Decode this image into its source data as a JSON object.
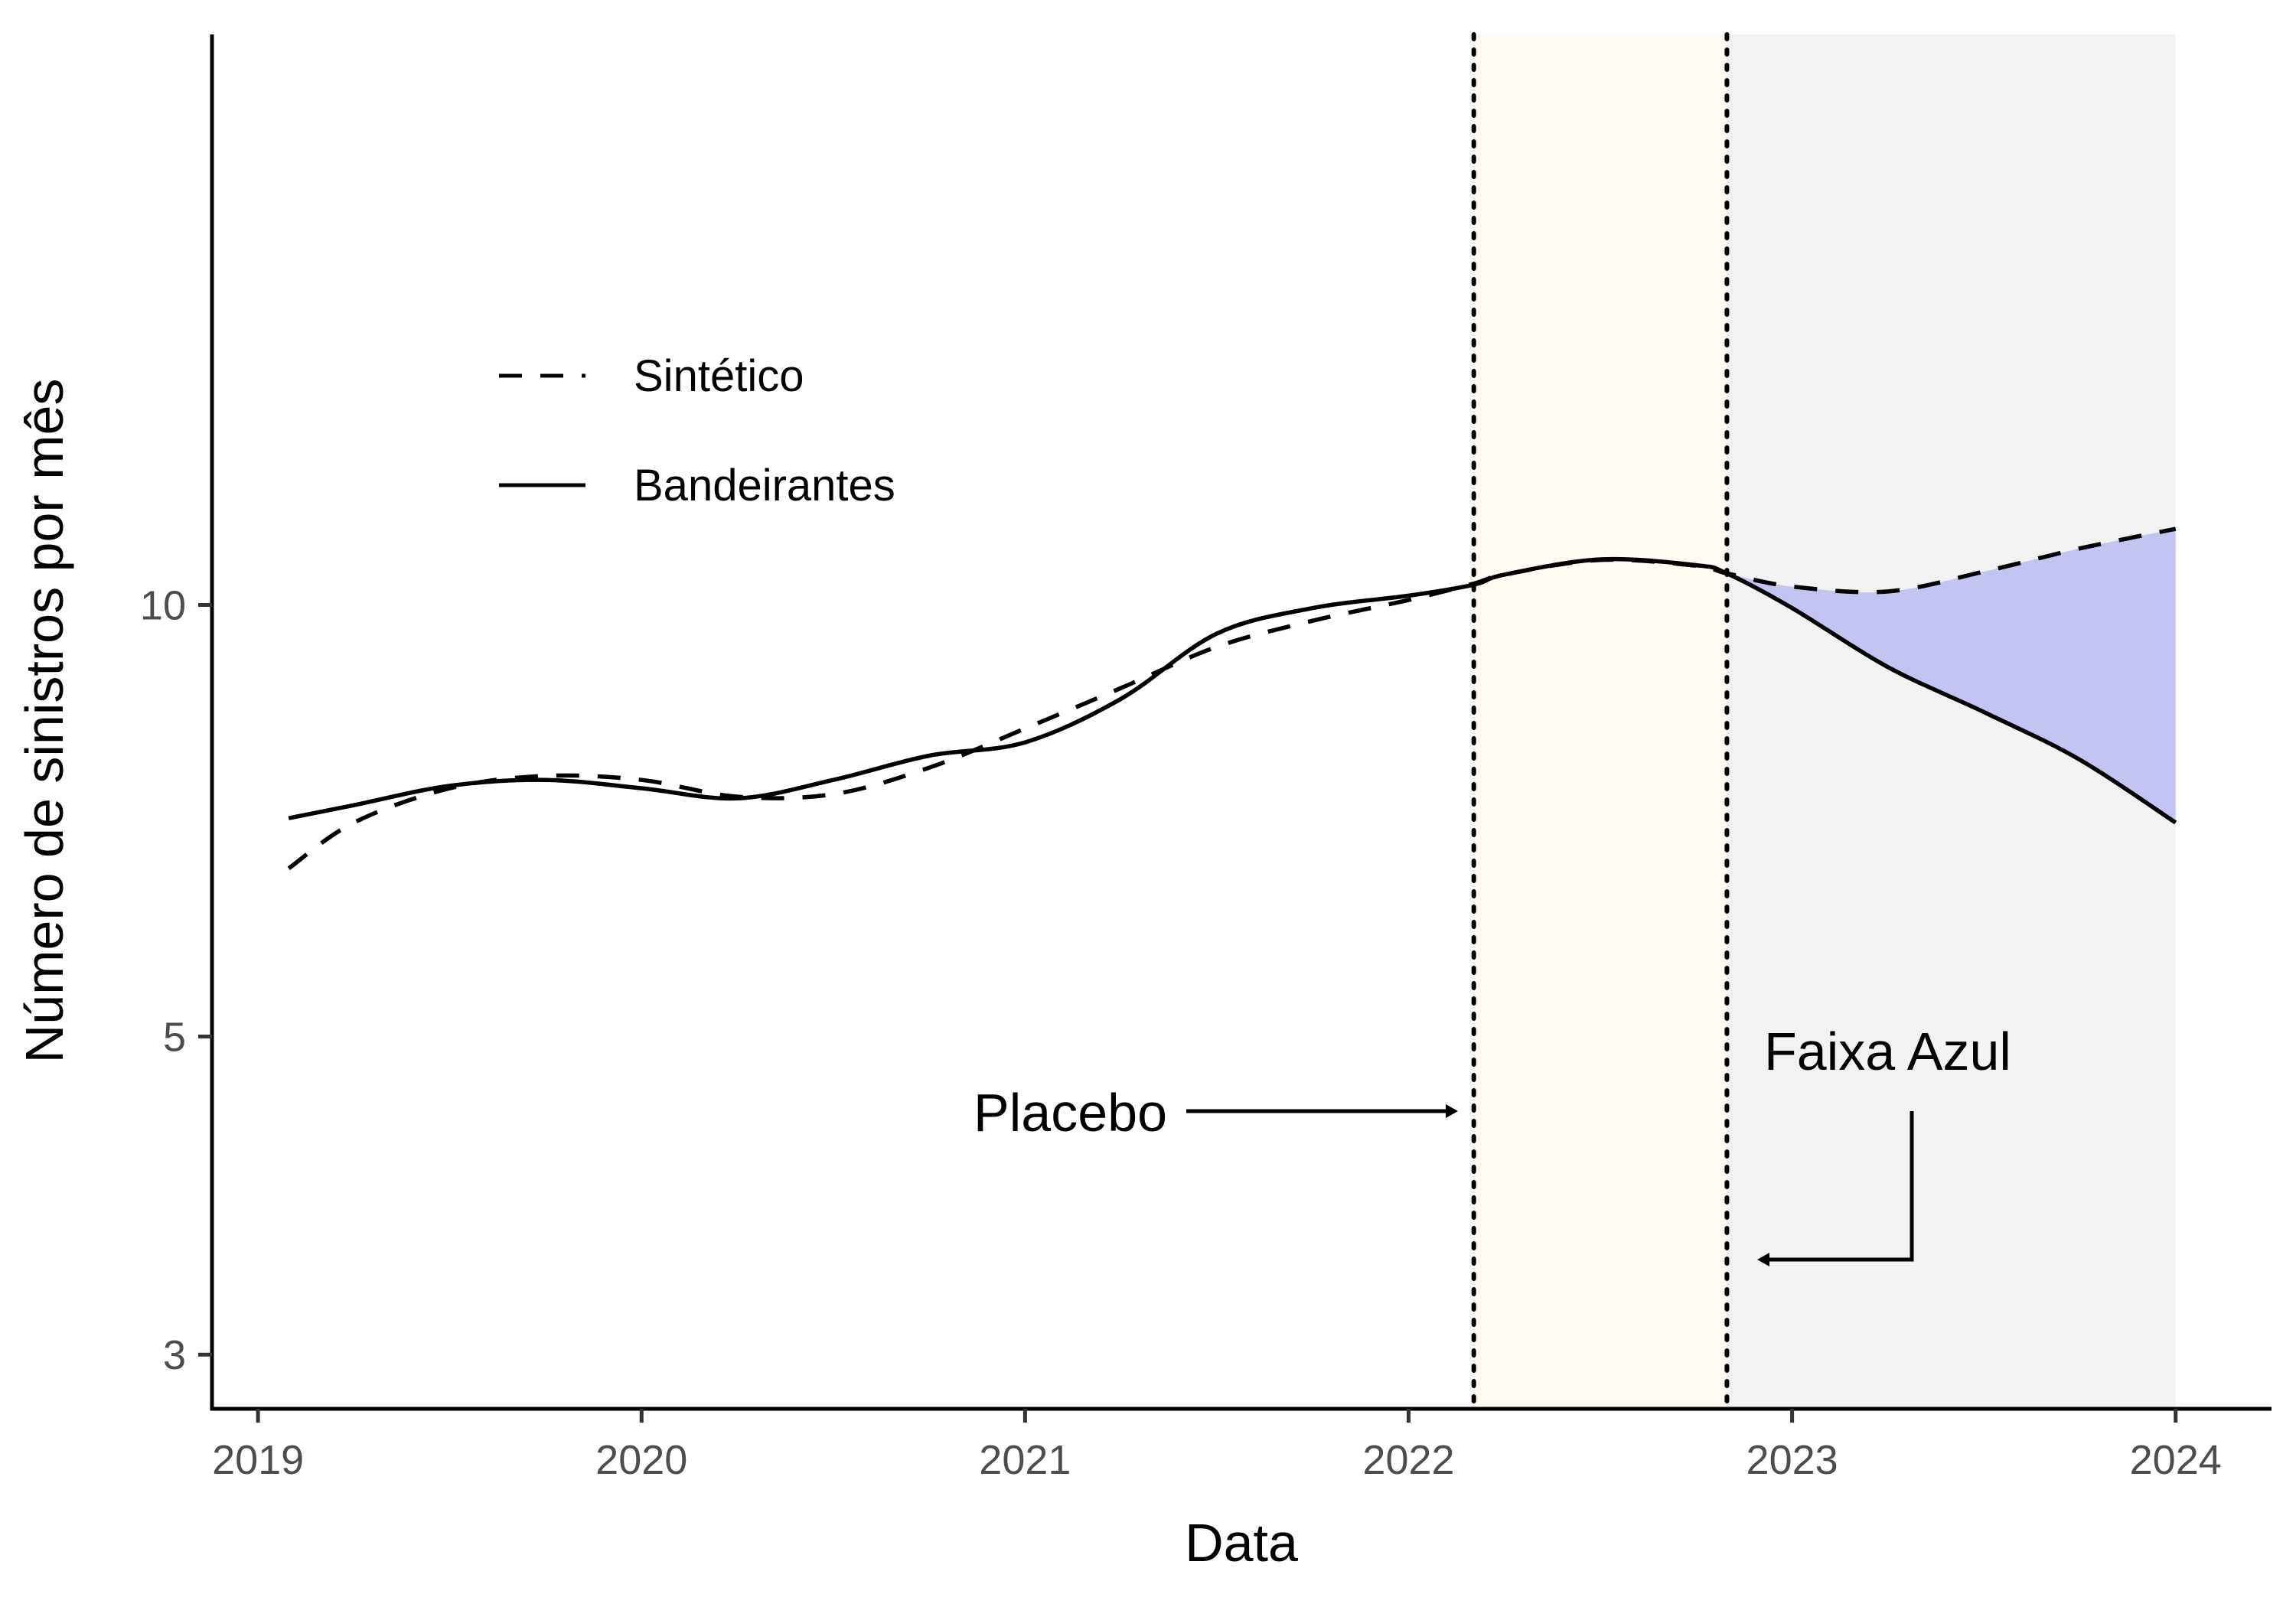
{
  "chart_data": {
    "type": "line",
    "title": "",
    "xlabel": "Data",
    "ylabel": "Número de sinistros por mês",
    "y_scale": "log",
    "xlim": [
      2018.88,
      2024.25
    ],
    "ylim": [
      2.75,
      25.0
    ],
    "x_ticks": [
      2019,
      2020,
      2021,
      2022,
      2023,
      2024
    ],
    "x_tick_labels": [
      "2019",
      "2020",
      "2021",
      "2022",
      "2023",
      "2024"
    ],
    "y_ticks": [
      3,
      5,
      10
    ],
    "y_tick_labels": [
      "3",
      "5",
      "10"
    ],
    "grid": false,
    "legend": {
      "position": "top-left",
      "entries": [
        "Sintético",
        "Bandeirantes"
      ]
    },
    "colors": {
      "placebo_band": "#fffaf2",
      "treatment_band": "#f2f2f2",
      "gap_fill": "#c4c4f2",
      "lines": "#000000"
    },
    "series": [
      {
        "name": "Sintético",
        "style": "dashed",
        "x": [
          2019.08,
          2019.25,
          2019.5,
          2019.75,
          2020.0,
          2020.25,
          2020.5,
          2020.75,
          2021.0,
          2021.25,
          2021.5,
          2021.75,
          2022.0,
          2022.17,
          2022.25,
          2022.5,
          2022.75,
          2022.83,
          2023.0,
          2023.25,
          2023.5,
          2023.75,
          2024.0
        ],
        "values": [
          6.55,
          7.05,
          7.45,
          7.6,
          7.55,
          7.35,
          7.38,
          7.7,
          8.2,
          8.75,
          9.35,
          9.75,
          10.08,
          10.35,
          10.5,
          10.75,
          10.65,
          10.52,
          10.3,
          10.22,
          10.55,
          10.95,
          11.3
        ]
      },
      {
        "name": "Bandeirantes",
        "style": "solid",
        "x": [
          2019.08,
          2019.25,
          2019.5,
          2019.75,
          2020.0,
          2020.25,
          2020.5,
          2020.75,
          2021.0,
          2021.25,
          2021.5,
          2021.75,
          2022.0,
          2022.17,
          2022.25,
          2022.5,
          2022.75,
          2022.83,
          2023.0,
          2023.25,
          2023.5,
          2023.75,
          2024.0
        ],
        "values": [
          7.1,
          7.25,
          7.48,
          7.55,
          7.45,
          7.33,
          7.55,
          7.85,
          8.02,
          8.6,
          9.55,
          9.95,
          10.15,
          10.33,
          10.5,
          10.76,
          10.66,
          10.52,
          9.95,
          9.05,
          8.42,
          7.8,
          7.05
        ]
      }
    ],
    "shaded_regions": [
      {
        "x_start": 2022.17,
        "x_end": 2022.83
      },
      {
        "x_start": 2022.83,
        "x_end": 2024.0
      }
    ],
    "vertical_lines": [
      2022.17,
      2022.83
    ],
    "annotations": [
      {
        "text": "Placebo"
      },
      {
        "text": "Faixa Azul"
      }
    ]
  }
}
